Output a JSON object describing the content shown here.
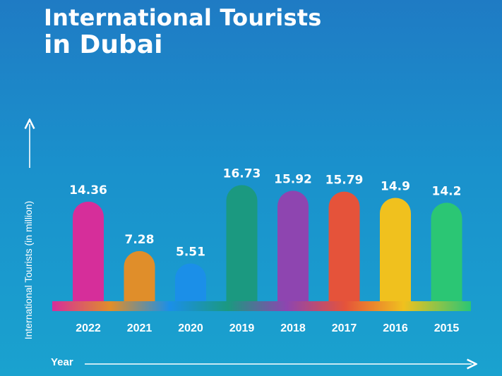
{
  "title": {
    "line1": "International Tourists",
    "line2": "in Dubai"
  },
  "chart_data": {
    "type": "bar",
    "title": "International Tourists in Dubai",
    "xlabel": "Year",
    "ylabel": "International Tourists (in million)",
    "categories": [
      "2022",
      "2021",
      "2020",
      "2019",
      "2018",
      "2017",
      "2016",
      "2015"
    ],
    "values": [
      14.36,
      7.28,
      5.51,
      16.73,
      15.92,
      15.79,
      14.9,
      14.2
    ],
    "value_labels": [
      "14.36",
      "7.28",
      "5.51",
      "16.73",
      "15.92",
      "15.79",
      "14.9",
      "14.2"
    ],
    "colors": [
      "#d62e9a",
      "#e08e2a",
      "#1b8fe8",
      "#1b9980",
      "#8e45b0",
      "#e5533a",
      "#f0c11e",
      "#2bc674"
    ],
    "ylim": [
      0,
      20
    ],
    "grid": false,
    "legend": "none"
  }
}
